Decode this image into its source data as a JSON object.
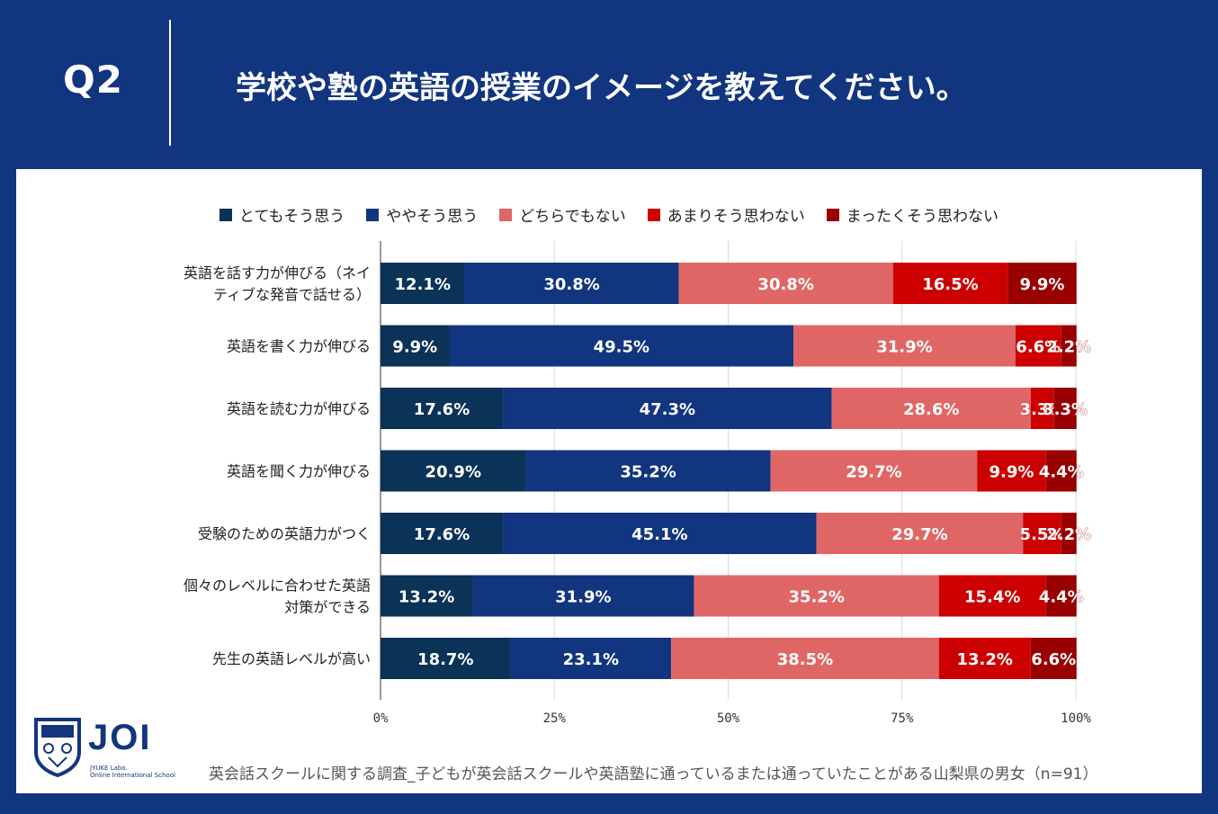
{
  "header": {
    "q_label": "Q2",
    "question": "学校や塾の英語の授業のイメージを教えてください。"
  },
  "colors": {
    "background": "#12357f",
    "series": [
      "#0b3257",
      "#12357f",
      "#e06666",
      "#cc0000",
      "#990000"
    ]
  },
  "chart_data": {
    "type": "bar",
    "orientation": "horizontal",
    "stacked": "percent",
    "legend_position": "top",
    "categories": [
      [
        "英語を話す力が伸びる（ネイ",
        "ティブな発音で話せる）"
      ],
      [
        "英語を書く力が伸びる"
      ],
      [
        "英語を読む力が伸びる"
      ],
      [
        "英語を聞く力が伸びる"
      ],
      [
        "受験のための英語力がつく"
      ],
      [
        "個々のレベルに合わせた英語",
        "対策ができる"
      ],
      [
        "先生の英語レベルが高い"
      ]
    ],
    "series": [
      {
        "name": "とてもそう思う",
        "values": [
          12.1,
          9.9,
          17.6,
          20.9,
          17.6,
          13.2,
          18.7
        ]
      },
      {
        "name": "ややそう思う",
        "values": [
          30.8,
          49.5,
          47.3,
          35.2,
          45.1,
          31.9,
          23.1
        ]
      },
      {
        "name": "どちらでもない",
        "values": [
          30.8,
          31.9,
          28.6,
          29.7,
          29.7,
          35.2,
          38.5
        ]
      },
      {
        "name": "あまりそう思わない",
        "values": [
          16.5,
          6.6,
          3.3,
          9.9,
          5.5,
          15.4,
          13.2
        ]
      },
      {
        "name": "まったくそう思わない",
        "values": [
          9.9,
          2.2,
          3.3,
          4.4,
          2.2,
          4.4,
          6.6
        ]
      }
    ],
    "x_ticks": [
      "0%",
      "25%",
      "50%",
      "75%",
      "100%"
    ],
    "xlim": [
      0,
      100
    ]
  },
  "footer": {
    "logo_text": "JOI",
    "logo_sub1": "JYUKE Labo.",
    "logo_sub2": "Online International School",
    "note": "英会話スクールに関する調査_子どもが英会話スクールや英語塾に通っているまたは通っていたことがある山梨県の男女（n=91）"
  }
}
